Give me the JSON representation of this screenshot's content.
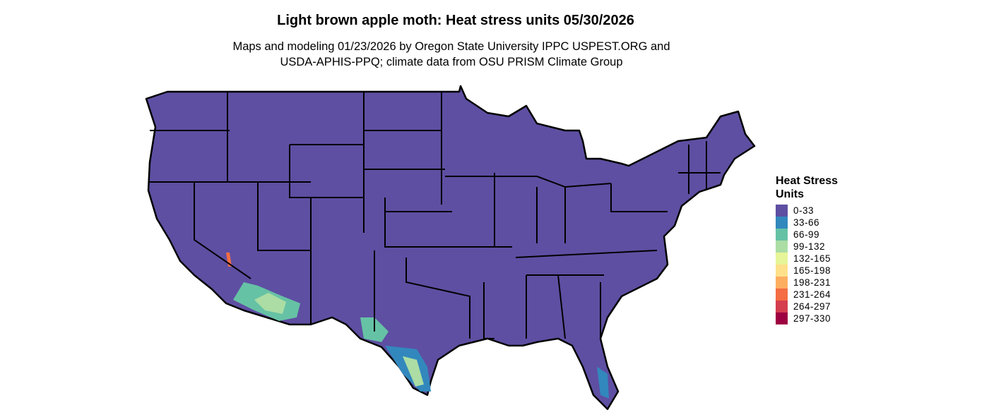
{
  "title": "Light brown apple moth: Heat stress units 05/30/2026",
  "subtitle_line1": "Maps and modeling 01/23/2026 by Oregon State University IPPC USPEST.ORG and",
  "subtitle_line2": "USDA-APHIS-PPQ; climate data from OSU PRISM Climate Group",
  "legend": {
    "title_line1": "Heat Stress",
    "title_line2": "Units",
    "items": [
      {
        "label": "0-33",
        "color": "#5E4FA2"
      },
      {
        "label": "33-66",
        "color": "#3288BD"
      },
      {
        "label": "66-99",
        "color": "#66C2A5"
      },
      {
        "label": "99-132",
        "color": "#ABDDA4"
      },
      {
        "label": "132-165",
        "color": "#E6F598"
      },
      {
        "label": "165-198",
        "color": "#FEE08B"
      },
      {
        "label": "198-231",
        "color": "#FDAE61"
      },
      {
        "label": "231-264",
        "color": "#F46D43"
      },
      {
        "label": "264-297",
        "color": "#D53E4F"
      },
      {
        "label": "297-330",
        "color": "#9E0142"
      }
    ]
  }
}
